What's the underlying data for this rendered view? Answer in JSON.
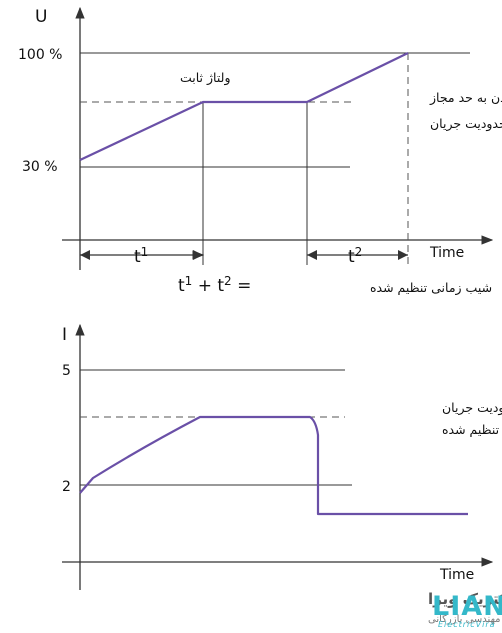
{
  "chart_data": [
    {
      "type": "line",
      "ylabel": "U",
      "xlabel": "Time",
      "ytick_labels": [
        "100 %",
        "30 %"
      ],
      "annotations": {
        "constant_voltage": "ولتاژ ثابت",
        "reach_limit_1": "رسیدن به حد مجاز",
        "reach_limit_2": "محدودیت جریان",
        "interval_1": "t1",
        "interval_2": "t2",
        "ramp_time": "شیب زمانی تنظیم شده = t1 + t2"
      },
      "series": [
        {
          "points": [
            [
              0,
              30
            ],
            [
              1,
              60
            ],
            [
              2,
              60
            ],
            [
              3,
              100
            ]
          ]
        }
      ]
    },
    {
      "type": "line",
      "ylabel": "I",
      "xlabel": "Time",
      "ytick_labels": [
        "5",
        "2"
      ],
      "annotations": {
        "set_limit_1": "محدودیت جریان",
        "set_limit_2": "تنظیم شده"
      },
      "series": [
        {
          "points": [
            [
              0,
              2
            ],
            [
              0.2,
              2.4
            ],
            [
              1,
              3.1
            ],
            [
              2,
              3.9
            ],
            [
              2.6,
              3.9
            ],
            [
              2.65,
              3.6
            ],
            [
              2.7,
              1.4
            ],
            [
              4,
              1.4
            ]
          ]
        }
      ]
    }
  ],
  "logo": {
    "company": "لیان الکتریک ویرا",
    "subtitle": "شرکت مهندسی بازرگانی",
    "mark": "LIAN",
    "mark_sub": "ElectricVira"
  }
}
